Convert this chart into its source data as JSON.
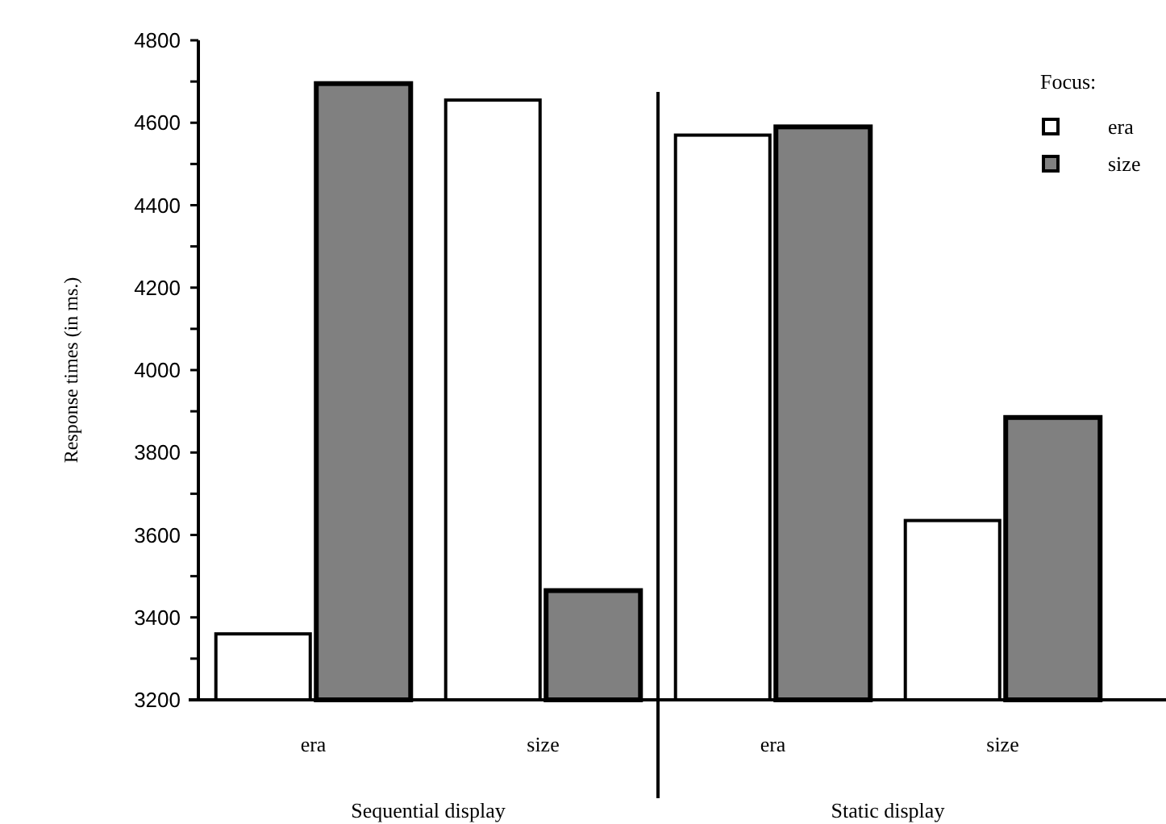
{
  "chart_data": {
    "type": "bar",
    "ylabel": "Response times (in ms.)",
    "legend_title": "Focus:",
    "legend": "top right",
    "categories": [
      "era",
      "size",
      "era",
      "size"
    ],
    "series": [
      {
        "name": "era",
        "color": "#ffffff",
        "values": [
          3360,
          4655,
          4570,
          3635
        ]
      },
      {
        "name": "size",
        "color": "#808080",
        "values": [
          4695,
          3465,
          4590,
          3885
        ]
      }
    ],
    "ylim": [
      3200,
      4800
    ],
    "yticks": [
      3200,
      {
        "value": 3300,
        "label": null
      },
      3400,
      {
        "value": 3500,
        "label": null
      },
      3600,
      {
        "value": 3700,
        "label": null
      },
      3800,
      {
        "value": 3900,
        "label": null
      },
      4000,
      {
        "value": 4100,
        "label": null
      },
      4200,
      {
        "value": 4300,
        "label": null
      },
      4400,
      {
        "value": 4500,
        "label": null
      },
      4600,
      {
        "value": 4700,
        "label": null
      },
      4800
    ],
    "annotations": [
      "Sequential display",
      "Static display"
    ]
  }
}
